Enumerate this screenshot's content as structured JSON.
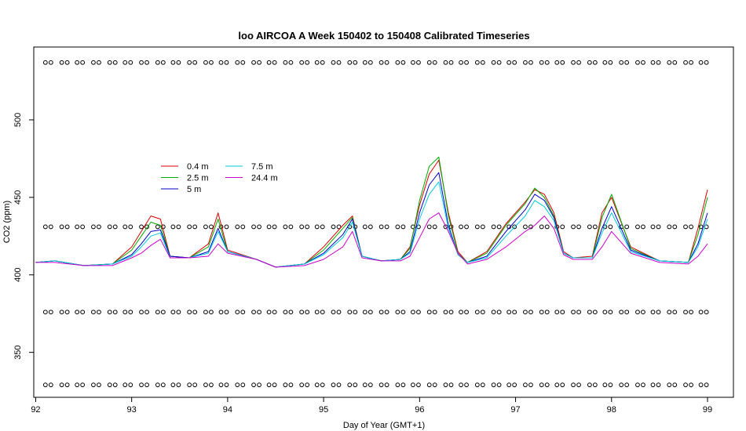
{
  "chart_data": {
    "type": "line",
    "title": "loo AIRCOA A  Week 150402 to 150408  Calibrated Timeseries",
    "xlabel": "Day of Year (GMT+1)",
    "ylabel": "CO2 (ppm)",
    "xlim": [
      91.98,
      99.27
    ],
    "ylim": [
      321,
      547
    ],
    "x_ticks": [
      92,
      93,
      94,
      95,
      96,
      97,
      98,
      99
    ],
    "y_ticks": [
      350,
      400,
      450,
      500
    ],
    "grid": false,
    "legend_position": "upper-left inside plot, two columns",
    "series": [
      {
        "name": "0.4 m",
        "color": "#DD0000",
        "x": [
          92.0,
          92.2,
          92.5,
          92.8,
          93.0,
          93.1,
          93.2,
          93.3,
          93.4,
          93.6,
          93.8,
          93.9,
          94.0,
          94.3,
          94.5,
          94.8,
          95.0,
          95.2,
          95.3,
          95.4,
          95.6,
          95.8,
          95.9,
          96.0,
          96.1,
          96.2,
          96.3,
          96.4,
          96.5,
          96.7,
          96.9,
          97.1,
          97.2,
          97.3,
          97.4,
          97.5,
          97.6,
          97.8,
          97.9,
          98.0,
          98.2,
          98.5,
          98.8,
          98.9,
          99.0
        ],
        "y": [
          408,
          409,
          406,
          407,
          418,
          428,
          438,
          436,
          412,
          411,
          420,
          440,
          416,
          410,
          405,
          407,
          418,
          432,
          438,
          412,
          409,
          410,
          418,
          445,
          465,
          474,
          440,
          415,
          408,
          415,
          433,
          447,
          455,
          452,
          440,
          415,
          411,
          412,
          440,
          450,
          418,
          409,
          408,
          430,
          455
        ]
      },
      {
        "name": "2.5 m",
        "color": "#00AA00",
        "x": [
          92.0,
          92.2,
          92.5,
          92.8,
          93.0,
          93.1,
          93.2,
          93.3,
          93.4,
          93.6,
          93.8,
          93.9,
          94.0,
          94.3,
          94.5,
          94.8,
          95.0,
          95.2,
          95.3,
          95.4,
          95.6,
          95.8,
          95.9,
          96.0,
          96.1,
          96.2,
          96.3,
          96.4,
          96.5,
          96.7,
          96.9,
          97.1,
          97.2,
          97.3,
          97.4,
          97.5,
          97.6,
          97.8,
          97.9,
          98.0,
          98.2,
          98.5,
          98.8,
          98.9,
          99.0
        ],
        "y": [
          408,
          409,
          406,
          407,
          416,
          425,
          434,
          432,
          412,
          411,
          418,
          436,
          415,
          410,
          405,
          407,
          416,
          430,
          437,
          412,
          409,
          410,
          417,
          448,
          470,
          476,
          438,
          414,
          408,
          414,
          432,
          446,
          456,
          450,
          438,
          414,
          411,
          411,
          437,
          452,
          417,
          409,
          408,
          426,
          450
        ]
      },
      {
        "name": "5 m",
        "color": "#0000CC",
        "x": [
          92.0,
          92.2,
          92.5,
          92.8,
          93.0,
          93.1,
          93.2,
          93.3,
          93.4,
          93.6,
          93.8,
          93.9,
          94.0,
          94.3,
          94.5,
          94.8,
          95.0,
          95.2,
          95.3,
          95.4,
          95.6,
          95.8,
          95.9,
          96.0,
          96.1,
          96.2,
          96.3,
          96.4,
          96.5,
          96.7,
          96.9,
          97.1,
          97.2,
          97.3,
          97.4,
          97.5,
          97.6,
          97.8,
          97.9,
          98.0,
          98.2,
          98.5,
          98.8,
          98.9,
          99.0
        ],
        "y": [
          408,
          409,
          406,
          407,
          413,
          420,
          428,
          429,
          412,
          411,
          415,
          430,
          415,
          410,
          405,
          407,
          414,
          426,
          436,
          412,
          409,
          410,
          415,
          440,
          458,
          466,
          432,
          413,
          408,
          412,
          428,
          442,
          452,
          448,
          437,
          414,
          411,
          411,
          430,
          444,
          416,
          409,
          408,
          420,
          440
        ]
      },
      {
        "name": "7.5 m",
        "color": "#00CCDD",
        "x": [
          92.0,
          92.2,
          92.5,
          92.8,
          93.0,
          93.1,
          93.2,
          93.3,
          93.4,
          93.6,
          93.8,
          93.9,
          94.0,
          94.3,
          94.5,
          94.8,
          95.0,
          95.2,
          95.3,
          95.4,
          95.6,
          95.8,
          95.9,
          96.0,
          96.1,
          96.2,
          96.3,
          96.4,
          96.5,
          96.7,
          96.9,
          97.1,
          97.2,
          97.3,
          97.4,
          97.5,
          97.6,
          97.8,
          97.9,
          98.0,
          98.2,
          98.5,
          98.8,
          98.9,
          99.0
        ],
        "y": [
          408,
          409,
          406,
          407,
          412,
          418,
          425,
          427,
          411,
          411,
          414,
          428,
          415,
          410,
          405,
          407,
          413,
          424,
          434,
          412,
          409,
          410,
          414,
          436,
          452,
          460,
          430,
          413,
          408,
          411,
          425,
          438,
          448,
          444,
          435,
          414,
          411,
          411,
          427,
          440,
          415,
          409,
          408,
          418,
          436
        ]
      },
      {
        "name": "24.4 m",
        "color": "#CC00CC",
        "x": [
          92.0,
          92.2,
          92.5,
          92.8,
          93.0,
          93.1,
          93.2,
          93.3,
          93.4,
          93.6,
          93.8,
          93.9,
          94.0,
          94.3,
          94.5,
          94.8,
          95.0,
          95.2,
          95.3,
          95.4,
          95.6,
          95.8,
          95.9,
          96.0,
          96.1,
          96.2,
          96.3,
          96.4,
          96.5,
          96.7,
          96.9,
          97.1,
          97.2,
          97.3,
          97.4,
          97.5,
          97.6,
          97.8,
          97.9,
          98.0,
          98.2,
          98.5,
          98.8,
          98.9,
          99.0
        ],
        "y": [
          408,
          408,
          406,
          406,
          411,
          414,
          419,
          423,
          411,
          411,
          412,
          420,
          414,
          410,
          405,
          406,
          410,
          418,
          428,
          411,
          409,
          409,
          412,
          424,
          436,
          440,
          428,
          414,
          407,
          410,
          418,
          428,
          432,
          438,
          430,
          413,
          410,
          410,
          418,
          428,
          414,
          408,
          407,
          412,
          420
        ]
      }
    ],
    "calibration_points": {
      "levels": [
        537,
        431,
        376,
        329
      ],
      "x": [
        92.13,
        92.3,
        92.46,
        92.63,
        92.8,
        92.96,
        93.13,
        93.3,
        93.46,
        93.63,
        93.8,
        93.96,
        94.13,
        94.3,
        94.46,
        94.63,
        94.8,
        94.96,
        95.13,
        95.3,
        95.46,
        95.63,
        95.8,
        95.96,
        96.13,
        96.3,
        96.46,
        96.63,
        96.8,
        96.96,
        97.13,
        97.3,
        97.46,
        97.63,
        97.8,
        97.96,
        98.13,
        98.3,
        98.46,
        98.63,
        98.8,
        98.96
      ]
    }
  }
}
